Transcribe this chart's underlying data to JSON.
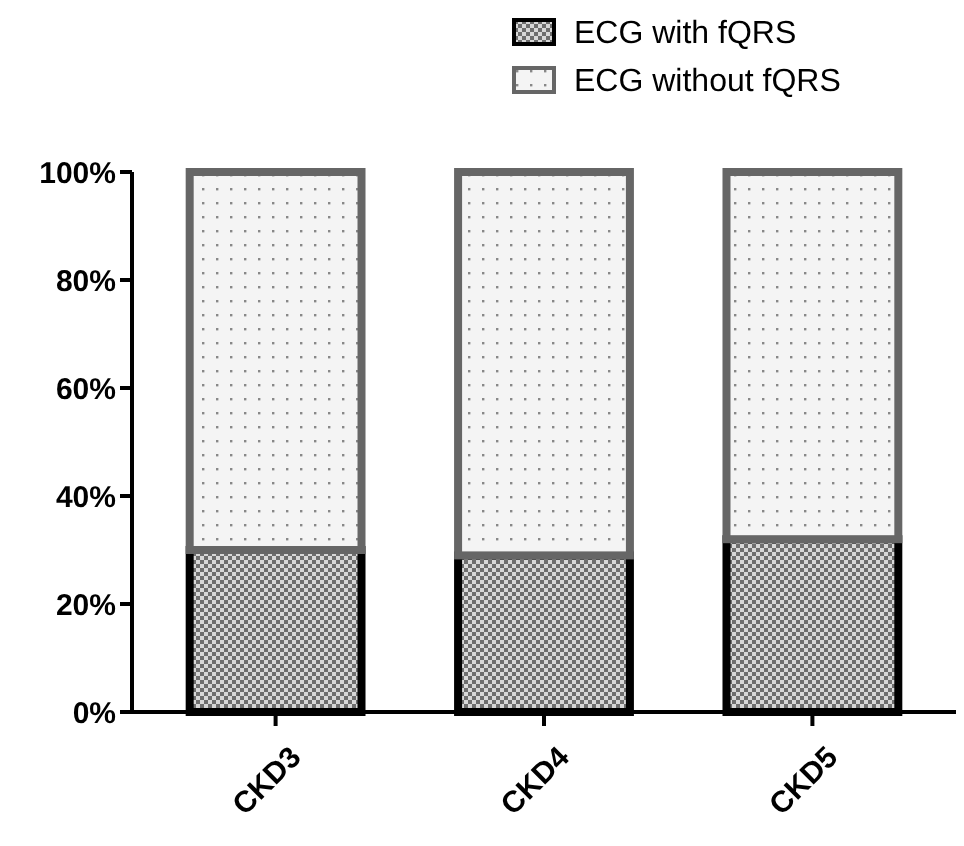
{
  "chart_data": {
    "type": "bar",
    "stacked": true,
    "categories": [
      "CKD3",
      "CKD4",
      "CKD5"
    ],
    "series": [
      {
        "name": "ECG with fQRS",
        "color": "#000000",
        "values": [
          30,
          29,
          32
        ]
      },
      {
        "name": "ECG without fQRS",
        "color": "#666666",
        "values": [
          70,
          71,
          68
        ]
      }
    ],
    "ylim": [
      0,
      100
    ],
    "yticks": [
      {
        "value": 0,
        "label": "0%"
      },
      {
        "value": 20,
        "label": "20%"
      },
      {
        "value": 40,
        "label": "40%"
      },
      {
        "value": 60,
        "label": "60%"
      },
      {
        "value": 80,
        "label": "80%"
      },
      {
        "value": 100,
        "label": "100%"
      }
    ],
    "grid": false,
    "legend": "top right"
  }
}
